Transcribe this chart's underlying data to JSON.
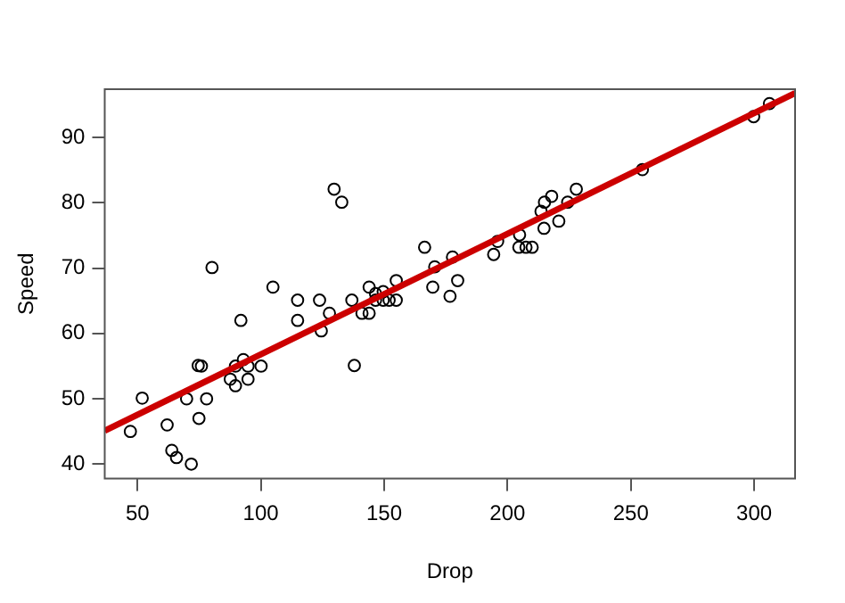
{
  "chart_data": {
    "type": "scatter",
    "xlabel": "Drop",
    "ylabel": "Speed",
    "xlim": [
      36.7,
      316.6
    ],
    "ylim": [
      37.8,
      97.4
    ],
    "xticks": [
      50,
      100,
      150,
      200,
      250,
      300
    ],
    "yticks": [
      40,
      50,
      60,
      70,
      80,
      90
    ],
    "grid": false,
    "legend": false,
    "series": [
      {
        "marker": "circle",
        "color": "#000000",
        "x": [
          47.1,
          51.9,
          62,
          63.9,
          65.8,
          71.8,
          69.9,
          74.9,
          74.6,
          75.9,
          78,
          80.2,
          87.6,
          89.7,
          89.7,
          91.9,
          92.9,
          94.8,
          94.8,
          100.1,
          104.9,
          114.9,
          114.9,
          123.8,
          124.5,
          127.8,
          129.7,
          132.8,
          136.9,
          137.9,
          141,
          143.9,
          143.9,
          146.5,
          149.6,
          149.6,
          146.5,
          154.9,
          154.9,
          152,
          166.4,
          170.5,
          169.7,
          177.7,
          179.8,
          176.7,
          194.4,
          196,
          204.9,
          204.6,
          207.5,
          210,
          213.6,
          215,
          217.9,
          214.8,
          220.8,
          224.4,
          227.9,
          254.7,
          299.8,
          306.2
        ],
        "values": [
          45,
          50.1,
          46,
          42.1,
          41,
          40,
          50,
          47,
          55.1,
          55,
          50,
          70.1,
          53,
          52,
          55,
          62,
          56,
          55,
          53,
          55,
          67.1,
          65.1,
          62,
          65.1,
          60.4,
          63.1,
          82.1,
          80.1,
          65.1,
          55.1,
          63.1,
          63.1,
          67.1,
          66.1,
          66.4,
          65.1,
          65.1,
          68.1,
          65.1,
          65.1,
          73.2,
          70.2,
          67.1,
          71.7,
          68.1,
          65.7,
          72.1,
          74.1,
          75.1,
          73.2,
          73.2,
          73.2,
          78.7,
          80.1,
          81,
          76.1,
          77.2,
          80.1,
          82.1,
          85.1,
          93.2,
          95.2
        ]
      },
      {
        "type": "line",
        "marker": "none",
        "color": "#cc0000",
        "x": [
          36.7,
          316.6
        ],
        "values": [
          45.1,
          96.8
        ]
      }
    ]
  }
}
